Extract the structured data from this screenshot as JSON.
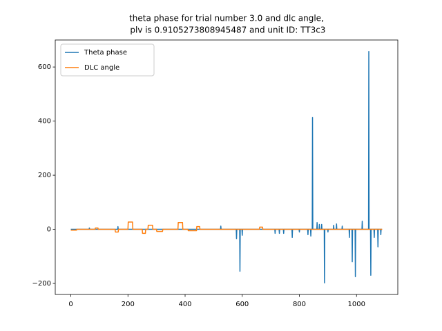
{
  "chart_data": {
    "type": "line",
    "title_lines": [
      "theta phase for trial number 3.0 and dlc angle,",
      " plv is 0.9105273808945487 and unit ID: TT3c3"
    ],
    "xlim": [
      -54.45,
      1144.45
    ],
    "ylim": [
      -240.75,
      699.75
    ],
    "xticks": [
      0,
      200,
      400,
      600,
      800,
      1000
    ],
    "yticks": [
      {
        "value": -200,
        "label": "−200"
      },
      0,
      200,
      400,
      600
    ],
    "legend": "upper left",
    "series": [
      {
        "name": "Theta phase",
        "color": "#1f77b4",
        "x": [
          0,
          64,
          65,
          66,
          164,
          165,
          166,
          524,
          525,
          526,
          579,
          580,
          581,
          591,
          592,
          593,
          599,
          600,
          601,
          714,
          715,
          716,
          729,
          730,
          731,
          744,
          745,
          746,
          774,
          775,
          776,
          799,
          800,
          801,
          829,
          830,
          831,
          839,
          840,
          841,
          845,
          846,
          847,
          861,
          862,
          863,
          869,
          870,
          871,
          877,
          878,
          879,
          887,
          888,
          889,
          899,
          900,
          901,
          919,
          920,
          921,
          929,
          930,
          931,
          949,
          950,
          951,
          974,
          975,
          976,
          984,
          985,
          986,
          995,
          996,
          997,
          1019,
          1020,
          1021,
          1042,
          1043,
          1044,
          1049,
          1050,
          1051,
          1061,
          1062,
          1063,
          1074,
          1075,
          1076,
          1084,
          1085,
          1086,
          1089
        ],
        "values": [
          0,
          0,
          5,
          0,
          0,
          10,
          0,
          0,
          12,
          0,
          0,
          -35,
          0,
          0,
          -155,
          0,
          0,
          -22,
          0,
          0,
          -15,
          0,
          0,
          -15,
          0,
          0,
          -15,
          0,
          0,
          -30,
          0,
          0,
          -10,
          0,
          0,
          -20,
          0,
          0,
          -25,
          0,
          0,
          413,
          0,
          0,
          25,
          0,
          0,
          18,
          0,
          0,
          18,
          0,
          0,
          -198,
          0,
          0,
          -10,
          0,
          0,
          15,
          0,
          0,
          20,
          0,
          0,
          12,
          0,
          0,
          -30,
          0,
          0,
          -120,
          0,
          0,
          -175,
          0,
          0,
          30,
          0,
          0,
          657,
          0,
          0,
          -170,
          0,
          0,
          -30,
          0,
          0,
          -65,
          0,
          0,
          -20,
          0,
          0
        ]
      },
      {
        "name": "DLC angle",
        "color": "#ff7f0e",
        "x": [
          0,
          20,
          21,
          85,
          86,
          95,
          96,
          155,
          156,
          166,
          167,
          200,
          201,
          216,
          217,
          250,
          251,
          261,
          262,
          270,
          271,
          286,
          287,
          300,
          301,
          321,
          322,
          375,
          376,
          391,
          392,
          410,
          411,
          440,
          441,
          451,
          452,
          660,
          661,
          671,
          672,
          1090
        ],
        "values": [
          -3,
          -3,
          0,
          0,
          5,
          5,
          0,
          0,
          -10,
          -10,
          0,
          0,
          27,
          27,
          0,
          0,
          -15,
          -15,
          0,
          0,
          15,
          15,
          0,
          0,
          -8,
          -8,
          0,
          0,
          25,
          25,
          0,
          0,
          -5,
          -5,
          10,
          10,
          0,
          0,
          8,
          8,
          0,
          0
        ]
      }
    ]
  }
}
